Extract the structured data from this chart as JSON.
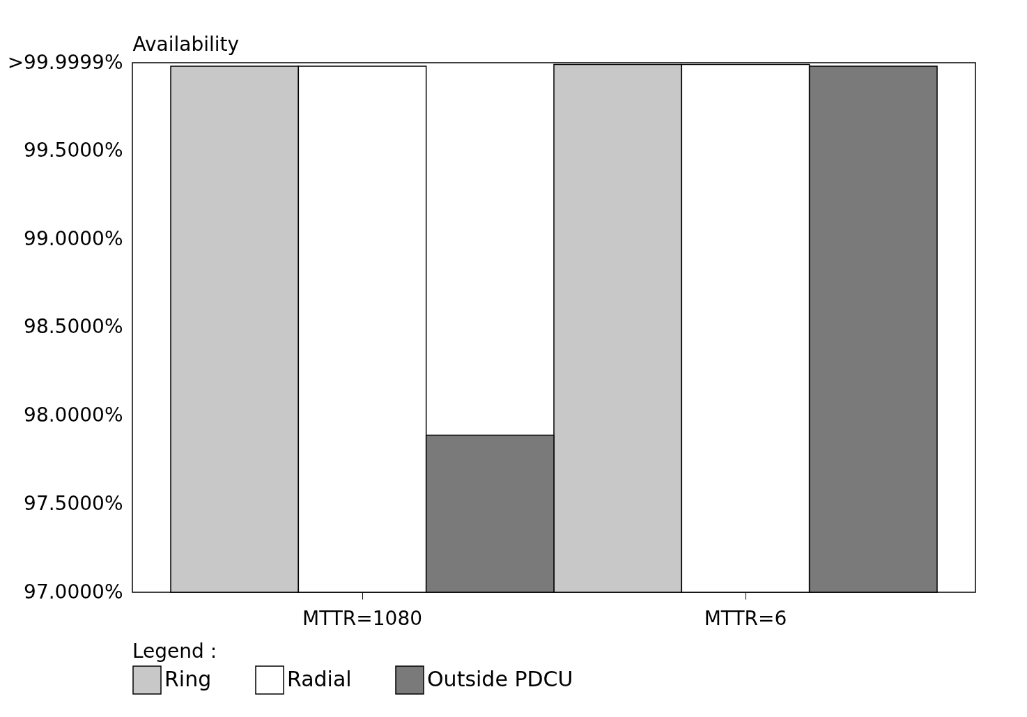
{
  "chart_data": {
    "type": "bar",
    "ylabel": "Availability",
    "legend_title": "Legend :",
    "legend": "bottom",
    "grid": false,
    "categories": [
      "MTTR=1080",
      "MTTR=6"
    ],
    "series": [
      {
        "name": "Ring",
        "color": "#c8c8c8",
        "values": [
          99.98,
          99.99
        ]
      },
      {
        "name": "Radial",
        "color": "#ffffff",
        "values": [
          99.98,
          99.99
        ]
      },
      {
        "name": "Outside PDCU",
        "color": "#7a7a7a",
        "values": [
          97.89,
          99.98
        ]
      }
    ],
    "ylim": [
      97,
      99.9999
    ],
    "yticks": [
      {
        "value": 97,
        "label": "97.0000%"
      },
      {
        "value": 97.5,
        "label": "97.5000%"
      },
      {
        "value": 98,
        "label": "98.0000%"
      },
      {
        "value": 98.5,
        "label": "98.5000%"
      },
      {
        "value": 99,
        "label": "99.0000%"
      },
      {
        "value": 99.5,
        "label": "99.5000%"
      },
      {
        "value": 99.9999,
        "label": ">99.9999%"
      }
    ]
  }
}
